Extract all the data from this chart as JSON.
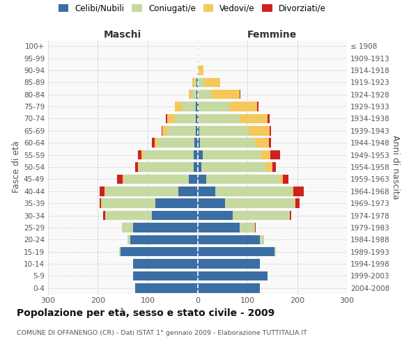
{
  "age_groups": [
    "0-4",
    "5-9",
    "10-14",
    "15-19",
    "20-24",
    "25-29",
    "30-34",
    "35-39",
    "40-44",
    "45-49",
    "50-54",
    "55-59",
    "60-64",
    "65-69",
    "70-74",
    "75-79",
    "80-84",
    "85-89",
    "90-94",
    "95-99",
    "100+"
  ],
  "birth_years": [
    "2004-2008",
    "1999-2003",
    "1994-1998",
    "1989-1993",
    "1984-1988",
    "1979-1983",
    "1974-1978",
    "1969-1973",
    "1964-1968",
    "1959-1963",
    "1954-1958",
    "1949-1953",
    "1944-1948",
    "1939-1943",
    "1934-1938",
    "1929-1933",
    "1924-1928",
    "1919-1923",
    "1914-1918",
    "1909-1913",
    "≤ 1908"
  ],
  "maschi_celibe": [
    125,
    130,
    130,
    155,
    135,
    130,
    92,
    85,
    38,
    18,
    8,
    8,
    6,
    4,
    3,
    3,
    2,
    2,
    0,
    0,
    0
  ],
  "maschi_coniugato": [
    0,
    0,
    0,
    2,
    5,
    22,
    93,
    108,
    148,
    130,
    110,
    100,
    75,
    58,
    42,
    28,
    10,
    4,
    1,
    0,
    0
  ],
  "maschi_vedovo": [
    0,
    0,
    0,
    0,
    0,
    0,
    0,
    1,
    1,
    2,
    2,
    4,
    5,
    8,
    16,
    14,
    6,
    4,
    0,
    0,
    0
  ],
  "maschi_divorziato": [
    0,
    0,
    0,
    0,
    0,
    0,
    4,
    3,
    10,
    12,
    5,
    8,
    5,
    2,
    3,
    0,
    0,
    0,
    0,
    0,
    0
  ],
  "femmine_nubile": [
    125,
    140,
    125,
    155,
    125,
    85,
    70,
    55,
    35,
    18,
    8,
    10,
    5,
    3,
    2,
    2,
    1,
    1,
    0,
    0,
    0
  ],
  "femmine_coniugata": [
    0,
    0,
    0,
    2,
    8,
    30,
    115,
    140,
    155,
    148,
    130,
    118,
    110,
    100,
    82,
    62,
    26,
    12,
    2,
    0,
    0
  ],
  "femmine_vedova": [
    0,
    0,
    0,
    0,
    0,
    0,
    0,
    2,
    3,
    5,
    12,
    18,
    28,
    42,
    56,
    56,
    58,
    32,
    10,
    2,
    1
  ],
  "femmine_divorziata": [
    0,
    0,
    0,
    0,
    0,
    2,
    3,
    8,
    20,
    12,
    8,
    20,
    5,
    3,
    5,
    3,
    1,
    0,
    0,
    0,
    0
  ],
  "colors": {
    "celibe": "#3b6ea5",
    "coniugato": "#c5d9a0",
    "vedovo": "#f5c85c",
    "divorziato": "#cc2222"
  },
  "title": "Popolazione per età, sesso e stato civile - 2009",
  "subtitle": "COMUNE DI OFFANENGO (CR) - Dati ISTAT 1° gennaio 2009 - Elaborazione TUTTITALIA.IT",
  "ylabel_left": "Fasce di età",
  "ylabel_right": "Anni di nascita",
  "xlabel_maschi": "Maschi",
  "xlabel_femmine": "Femmine",
  "xlim": 300,
  "grid_color": "#cccccc",
  "bg_color": "#f9f9f9"
}
